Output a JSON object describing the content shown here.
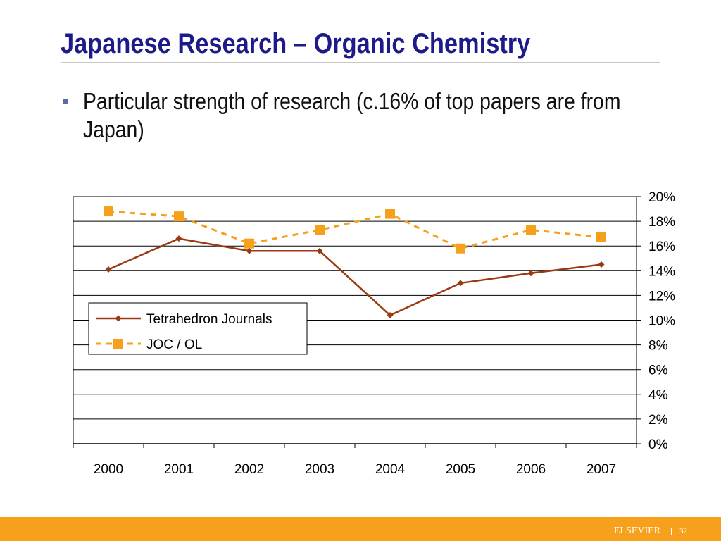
{
  "slide": {
    "title": "Japanese Research – Organic Chemistry",
    "bullet": "Particular strength of research (c.16% of top papers are from Japan)"
  },
  "footer": {
    "brand": "ELSEVIER",
    "page_number": "32",
    "bar_color": "#f7a01b"
  },
  "chart_data": {
    "type": "line",
    "categories": [
      "2000",
      "2001",
      "2002",
      "2003",
      "2004",
      "2005",
      "2006",
      "2007"
    ],
    "ylim": [
      0,
      20
    ],
    "y_ticks": [
      "0%",
      "2%",
      "4%",
      "6%",
      "8%",
      "10%",
      "12%",
      "14%",
      "16%",
      "18%",
      "20%"
    ],
    "y_axis_side": "right",
    "grid": true,
    "legend_position": "center-left",
    "series": [
      {
        "name": "Tetrahedron Journals",
        "values": [
          14.1,
          16.6,
          15.6,
          15.6,
          10.4,
          13.0,
          13.8,
          14.5
        ],
        "color": "#9b3a12",
        "style": "solid",
        "marker": "diamond"
      },
      {
        "name": "JOC / OL",
        "values": [
          18.8,
          18.4,
          16.2,
          17.3,
          18.6,
          15.8,
          17.3,
          16.7
        ],
        "color": "#f7a01b",
        "style": "dashed",
        "marker": "square"
      }
    ]
  }
}
